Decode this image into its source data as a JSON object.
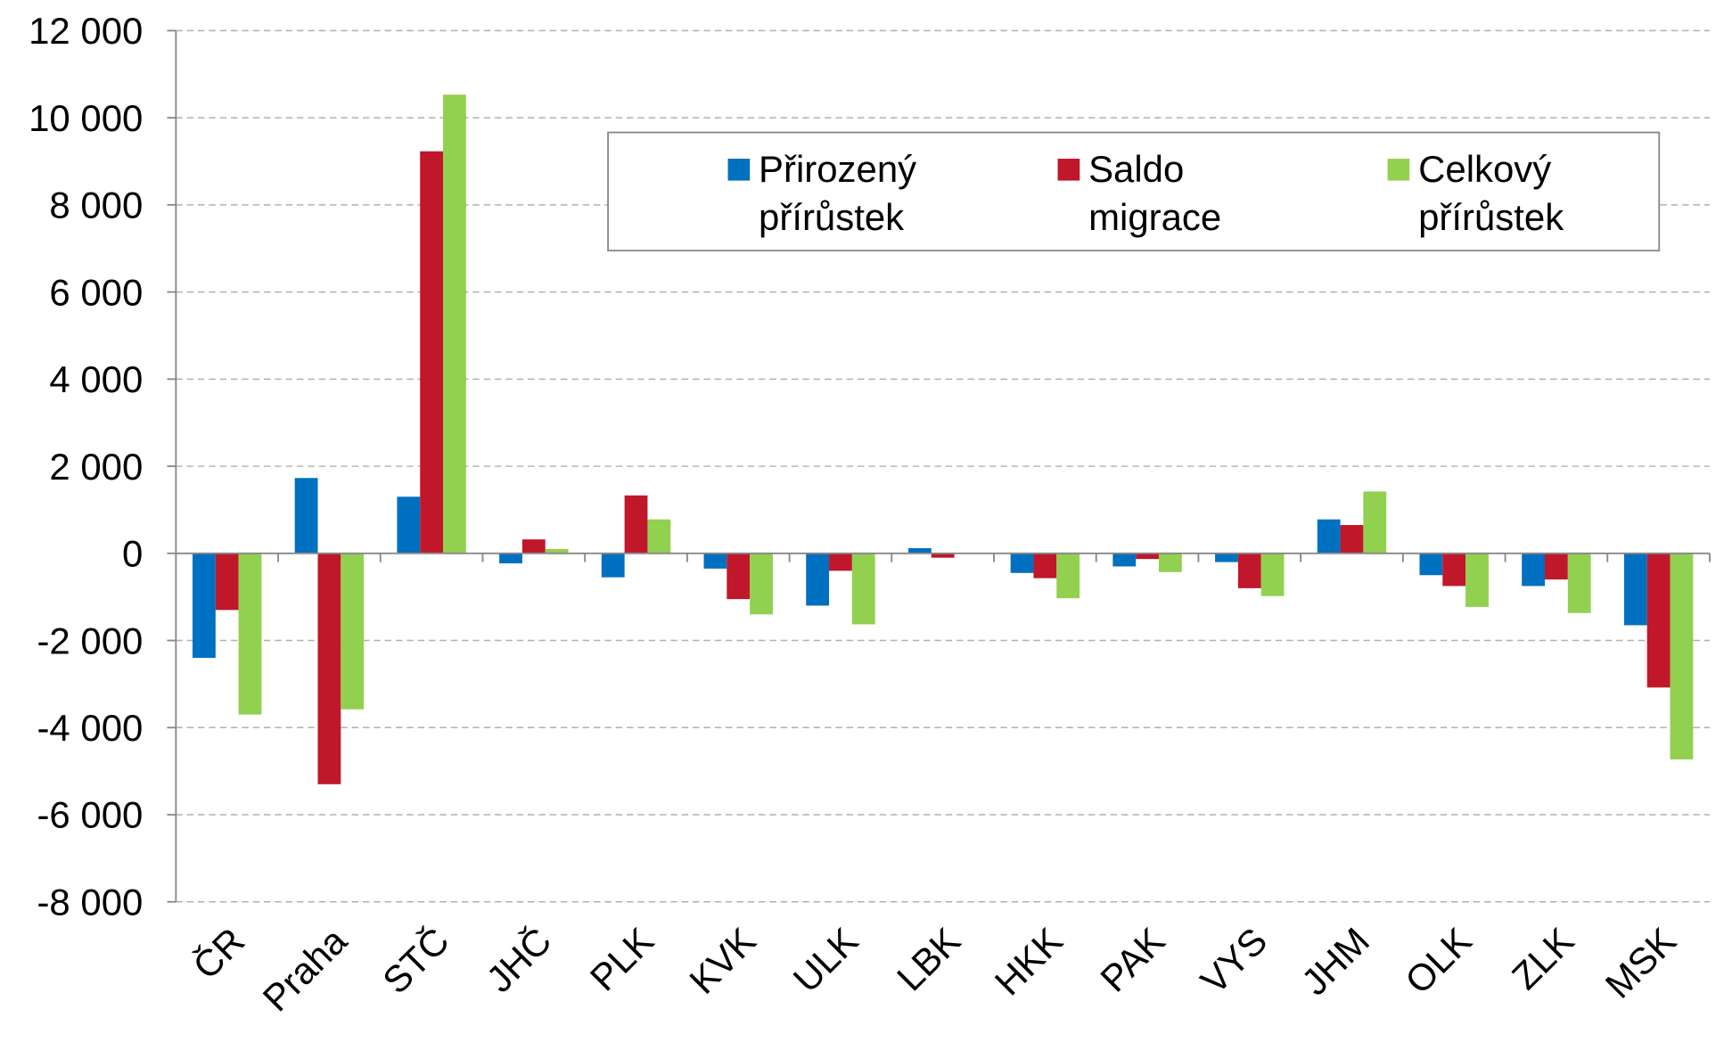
{
  "chart_data": {
    "type": "bar",
    "categories": [
      "ČR",
      "Praha",
      "STČ",
      "JHČ",
      "PLK",
      "KVK",
      "ULK",
      "LBK",
      "HKK",
      "PAK",
      "VYS",
      "JHM",
      "OLK",
      "ZLK",
      "MSK"
    ],
    "series": [
      {
        "name": "Přirozený přírůstek",
        "color": "#0070c0",
        "values": [
          -2400,
          1730,
          1300,
          -230,
          -550,
          -350,
          -1200,
          120,
          -450,
          -300,
          -200,
          780,
          -500,
          -750,
          -1650
        ]
      },
      {
        "name": "Saldo migrace",
        "color": "#c0172b",
        "values": [
          -1300,
          -5300,
          9230,
          320,
          1330,
          -1050,
          -400,
          -100,
          -570,
          -130,
          -800,
          650,
          -750,
          -600,
          -3080
        ]
      },
      {
        "name": "Celkový přírůstek",
        "color": "#92d050",
        "values": [
          -3700,
          -3580,
          10530,
          100,
          780,
          -1400,
          -1630,
          0,
          -1030,
          -430,
          -980,
          1420,
          -1230,
          -1370,
          -4730
        ]
      }
    ],
    "ylim": [
      -8000,
      12000
    ],
    "yticks": [
      {
        "value": -8000,
        "label": "-8 000"
      },
      {
        "value": -6000,
        "label": "-6 000"
      },
      {
        "value": -4000,
        "label": "-4 000"
      },
      {
        "value": -2000,
        "label": "-2 000"
      },
      0,
      {
        "value": 2000,
        "label": "2 000"
      },
      {
        "value": 4000,
        "label": "4 000"
      },
      {
        "value": 6000,
        "label": "6 000"
      },
      {
        "value": 8000,
        "label": "8 000"
      },
      {
        "value": 10000,
        "label": "10 000"
      },
      {
        "value": 12000,
        "label": "12 000"
      }
    ],
    "grid": true,
    "legend": "top-right"
  }
}
